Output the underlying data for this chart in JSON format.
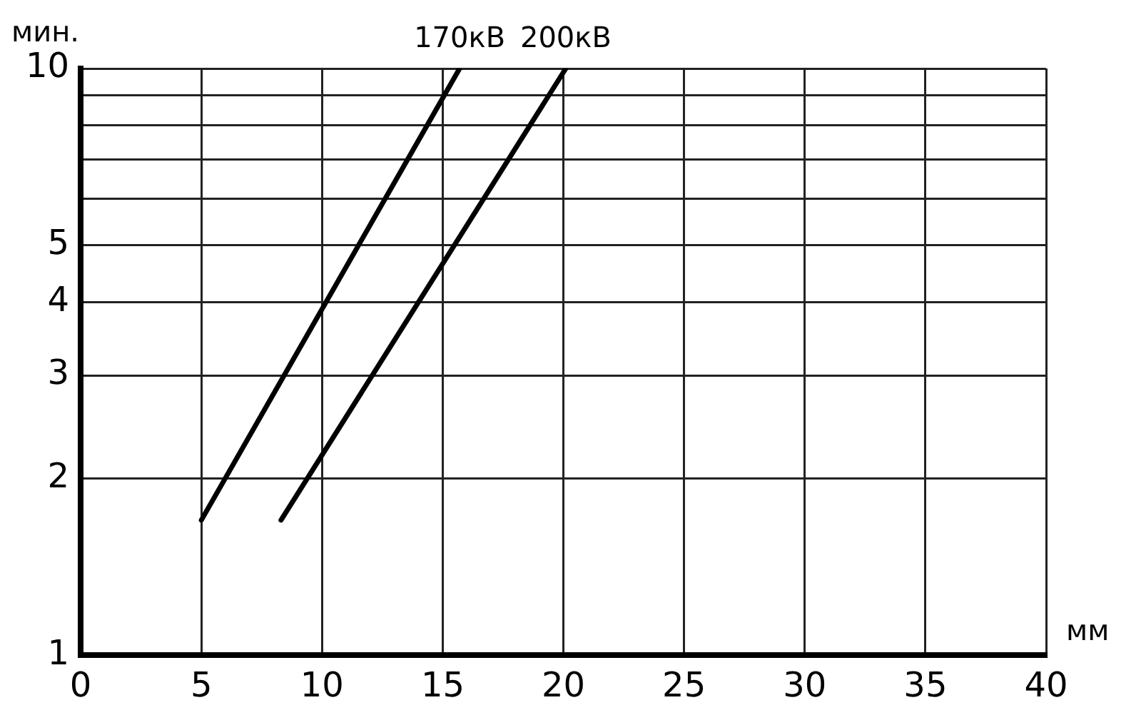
{
  "chart_data": {
    "type": "line",
    "xlabel": "мм",
    "ylabel": "мин.",
    "log": "y",
    "grid": true,
    "marker": "none",
    "line_style": "solid",
    "legend": false,
    "xlim": [
      0,
      40
    ],
    "xticks": [
      0,
      5,
      10,
      15,
      20,
      25,
      30,
      35,
      40
    ],
    "ylim": [
      1,
      10
    ],
    "yticks": [
      1,
      2,
      3,
      4,
      5,
      {
        "value": 6,
        "label": null
      },
      {
        "value": 7,
        "label": null
      },
      {
        "value": 8,
        "label": null
      },
      {
        "value": 9,
        "label": null
      },
      10
    ],
    "series": [
      {
        "name": "170кВ",
        "color": "#000000",
        "x": [
          5,
          15.7
        ],
        "values": [
          1.7,
          10
        ]
      },
      {
        "name": "200кВ",
        "color": "#000000",
        "x": [
          8.3,
          20.1
        ],
        "values": [
          1.7,
          10
        ]
      }
    ]
  }
}
